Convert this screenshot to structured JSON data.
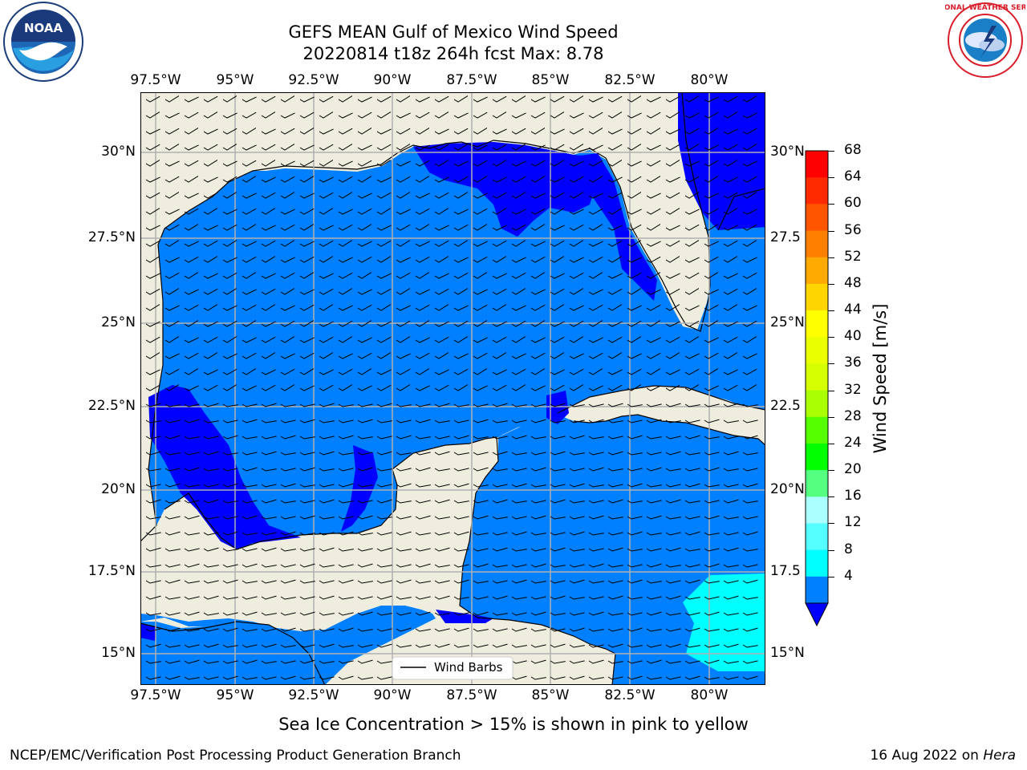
{
  "header": {
    "title_line1": "GEFS MEAN Gulf of Mexico Wind Speed",
    "title_line2": "20220814 t18z 264h fcst   Max: 8.78"
  },
  "logos": {
    "left": {
      "name": "noaa-logo",
      "text": "NOAA",
      "ring_text": "NATIONAL OCEANIC AND ATMOSPHERIC ADMINISTRATION · U.S. DEPARTMENT OF COMMERCE"
    },
    "right": {
      "name": "nws-logo",
      "ring_text": "NATIONAL WEATHER SERVICE"
    }
  },
  "map": {
    "lon_labels": [
      "97.5°W",
      "95°W",
      "92.5°W",
      "90°W",
      "87.5°W",
      "85°W",
      "82.5°W",
      "80°W"
    ],
    "lat_labels_left": [
      "30°N",
      "27.5°N",
      "25°N",
      "22.5°N",
      "20°N",
      "17.5°N",
      "15°N"
    ],
    "lat_labels_right": [
      "30°N",
      "27.5",
      "25°N",
      "22.5",
      "20°N",
      "17.5",
      "15°N"
    ],
    "legend_label": "Wind Barbs",
    "colors": {
      "land": "#efedde",
      "grid": "#b0b0b0",
      "speed_4_8": "#0080ff",
      "speed_0_4": "#0000ff",
      "speed_8_12": "#00ffff"
    }
  },
  "colorbar": {
    "label": "Wind Speed [m/s]",
    "ticks": [
      "68",
      "64",
      "60",
      "56",
      "52",
      "48",
      "44",
      "40",
      "36",
      "32",
      "28",
      "24",
      "20",
      "16",
      "12",
      "8",
      "4"
    ],
    "colors": [
      "#ff0000",
      "#ff2a00",
      "#ff5500",
      "#ff8000",
      "#ffaa00",
      "#ffd500",
      "#ffff00",
      "#eaff00",
      "#d5ff00",
      "#aaff00",
      "#55ff00",
      "#00ff00",
      "#55ff80",
      "#aaffff",
      "#55ffff",
      "#00ffff",
      "#0080ff"
    ],
    "under_color": "#0000ff"
  },
  "caption": "Sea Ice Concentration > 15% is shown in pink to yellow",
  "footer": {
    "left": "NCEP/EMC/Verification Post Processing Product Generation Branch",
    "right_prefix": "16 Aug 2022 on ",
    "right_italic": "Hera"
  }
}
